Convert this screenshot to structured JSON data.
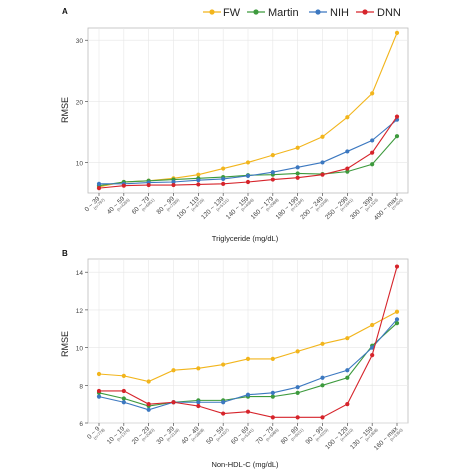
{
  "colors": {
    "FW": "#F2B51C",
    "Martin": "#3D9A3D",
    "NIH": "#3C78C0",
    "DNN": "#D6242B",
    "grid": "#e6e6e6",
    "panel_border": "#bdbdbd"
  },
  "legend": {
    "placement": "top-right",
    "items": [
      "FW",
      "Martin",
      "NIH",
      "DNN"
    ]
  },
  "chart_data": [
    {
      "type": "line",
      "panel_label": "A",
      "xlabel": "Triglyceride (mg/dL)",
      "ylabel": "RMSE",
      "ylim": [
        5,
        32
      ],
      "yticks": [
        10,
        20,
        30
      ],
      "grid": true,
      "categories": [
        "0 ~ 39",
        "40 ~ 59",
        "60 ~ 79",
        "80 ~ 99",
        "100 ~ 119",
        "120 ~ 139",
        "140 ~ 159",
        "160 ~ 179",
        "180 ~ 199",
        "200 ~ 249",
        "250 ~ 299",
        "300 ~ 399",
        "400 ~ max"
      ],
      "sublabels": [
        "(n=797)",
        "(n=4265)",
        "(n=6851)",
        "(n=7285)",
        "(n=6735)",
        "(n=5131)",
        "(n=4066)",
        "(n=2988)",
        "(n=2184)",
        "(n=3348)",
        "(n=1641)",
        "(n=1323)",
        "(n=600)"
      ],
      "series": [
        {
          "name": "FW",
          "values": [
            6.0,
            6.8,
            7.0,
            7.4,
            8.0,
            9.0,
            10.0,
            11.2,
            12.4,
            14.2,
            17.4,
            21.3,
            31.2
          ]
        },
        {
          "name": "Martin",
          "values": [
            6.2,
            6.8,
            7.0,
            7.2,
            7.4,
            7.6,
            7.9,
            8.0,
            8.2,
            8.1,
            8.5,
            9.7,
            14.3
          ]
        },
        {
          "name": "NIH",
          "values": [
            6.5,
            6.5,
            6.7,
            6.8,
            7.1,
            7.3,
            7.8,
            8.4,
            9.2,
            10.0,
            11.8,
            13.6,
            17.0
          ]
        },
        {
          "name": "DNN",
          "values": [
            5.8,
            6.2,
            6.3,
            6.3,
            6.4,
            6.5,
            6.8,
            7.2,
            7.5,
            8.0,
            9.0,
            11.6,
            17.5
          ]
        }
      ]
    },
    {
      "type": "line",
      "panel_label": "B",
      "xlabel": "Non-HDL-C (mg/dL)",
      "ylabel": "RMSE",
      "ylim": [
        6,
        14.7
      ],
      "yticks": [
        6,
        8,
        10,
        12,
        14
      ],
      "grid": true,
      "categories": [
        "0 ~ 9",
        "10 ~ 19",
        "20 ~ 29",
        "30 ~ 39",
        "40 ~ 49",
        "50 ~ 59",
        "60 ~ 69",
        "70 ~ 79",
        "80 ~ 89",
        "90 ~ 99",
        "100 ~ 129",
        "130 ~ 159",
        "160 ~ max"
      ],
      "sublabels": [
        "(n=778)",
        "(n=1376)",
        "(n=2083)",
        "(n=3136)",
        "(n=3808)",
        "(n=4337)",
        "(n=5241)",
        "(n=5985)",
        "(n=6011)",
        "(n=4205)",
        "(n=4410)",
        "(n=1808)",
        "(n=3350)"
      ],
      "series": [
        {
          "name": "FW",
          "values": [
            8.6,
            8.5,
            8.2,
            8.8,
            8.9,
            9.1,
            9.4,
            9.4,
            9.8,
            10.2,
            10.5,
            11.2,
            11.9
          ]
        },
        {
          "name": "Martin",
          "values": [
            7.6,
            7.3,
            6.9,
            7.1,
            7.2,
            7.2,
            7.4,
            7.4,
            7.6,
            8.0,
            8.4,
            10.1,
            11.3
          ]
        },
        {
          "name": "NIH",
          "values": [
            7.4,
            7.1,
            6.7,
            7.1,
            7.1,
            7.1,
            7.5,
            7.6,
            7.9,
            8.4,
            8.8,
            10.0,
            11.5
          ]
        },
        {
          "name": "DNN",
          "values": [
            7.7,
            7.7,
            7.0,
            7.1,
            6.9,
            6.5,
            6.6,
            6.3,
            6.3,
            6.3,
            7.0,
            9.6,
            14.3
          ]
        }
      ]
    }
  ]
}
